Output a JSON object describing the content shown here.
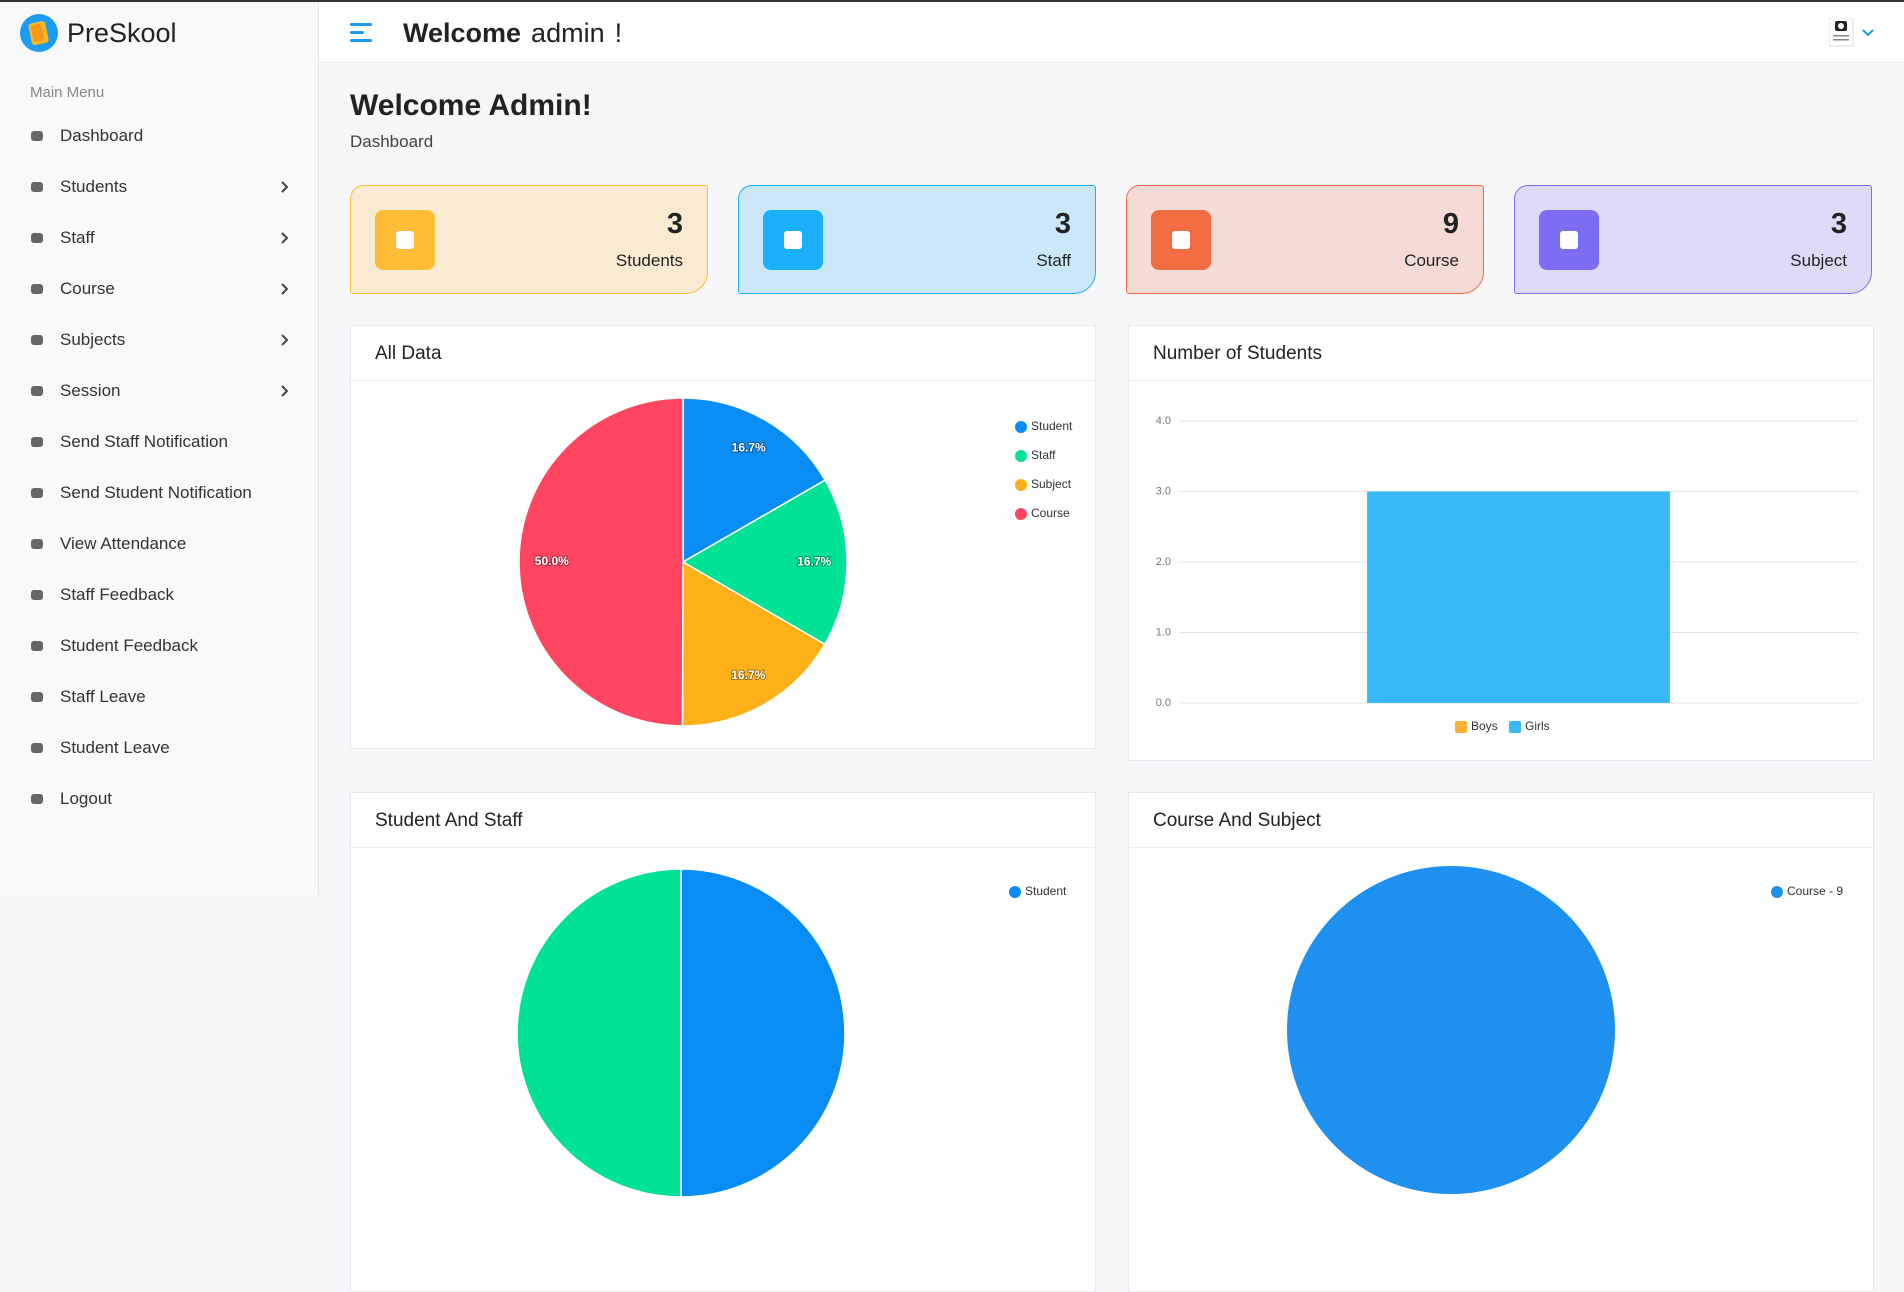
{
  "sidebar": {
    "brand": "PreSkool",
    "heading": "Main Menu",
    "items": [
      {
        "label": "Dashboard",
        "submenu": false
      },
      {
        "label": "Students",
        "submenu": true
      },
      {
        "label": "Staff",
        "submenu": true
      },
      {
        "label": "Course",
        "submenu": true
      },
      {
        "label": "Subjects",
        "submenu": true
      },
      {
        "label": "Session",
        "submenu": true
      },
      {
        "label": "Send Staff Notification",
        "submenu": false
      },
      {
        "label": "Send Student Notification",
        "submenu": false
      },
      {
        "label": "View Attendance",
        "submenu": false
      },
      {
        "label": "Staff Feedback",
        "submenu": false
      },
      {
        "label": "Student Feedback",
        "submenu": false
      },
      {
        "label": "Staff Leave",
        "submenu": false
      },
      {
        "label": "Student Leave",
        "submenu": false
      },
      {
        "label": "Logout",
        "submenu": false
      }
    ]
  },
  "header": {
    "greeting": "Welcome",
    "user": "admin",
    "mark": "!"
  },
  "page": {
    "title": "Welcome Admin!",
    "breadcrumb": "Dashboard"
  },
  "cards": [
    {
      "value": 3,
      "label": "Students",
      "color": "#ffbc34"
    },
    {
      "value": 3,
      "label": "Staff",
      "color": "#19affb"
    },
    {
      "value": 9,
      "label": "Course",
      "color": "#f26d41"
    },
    {
      "value": 3,
      "label": "Subject",
      "color": "#7c6ef2"
    }
  ],
  "panels": [
    {
      "title": "All Data",
      "chart_data": {
        "type": "pie",
        "categories": [
          "Student",
          "Staff",
          "Subject",
          "Course"
        ],
        "values": [
          16.7,
          16.7,
          16.7,
          50.0
        ],
        "value_labels": [
          "16.7%",
          "16.7%",
          "16.7%",
          "50.0%"
        ],
        "colors": [
          "#0a8cf5",
          "#00e396",
          "#feb019",
          "#ff4560"
        ]
      }
    },
    {
      "title": "Number of Students",
      "chart_data": {
        "type": "bar",
        "categories": [
          null
        ],
        "series": [
          {
            "name": "Boys",
            "color": "#fcb135",
            "values": [
              null
            ]
          },
          {
            "name": "Girls",
            "color": "#39b8f7",
            "values": [
              3
            ]
          }
        ],
        "ylim": [
          0,
          4
        ],
        "yticks": [
          {
            "value": 0,
            "label": "0.0"
          },
          {
            "value": 1,
            "label": "1.0"
          },
          {
            "value": 2,
            "label": "2.0"
          },
          {
            "value": 3,
            "label": "3.0"
          },
          {
            "value": 4,
            "label": "4.0"
          }
        ],
        "grid": true,
        "legend": "bottom"
      }
    },
    {
      "title": "Student And Staff",
      "chart_data": {
        "type": "pie",
        "categories": [
          "Student",
          null
        ],
        "values": [
          50,
          50
        ],
        "colors": [
          "#0a8cf5",
          "#00e396"
        ]
      }
    },
    {
      "title": "Course And Subject",
      "chart_data": {
        "type": "pie",
        "categories": [
          "Course - 9"
        ],
        "values": [
          9
        ],
        "colors": [
          "#1e90f0"
        ]
      }
    }
  ]
}
